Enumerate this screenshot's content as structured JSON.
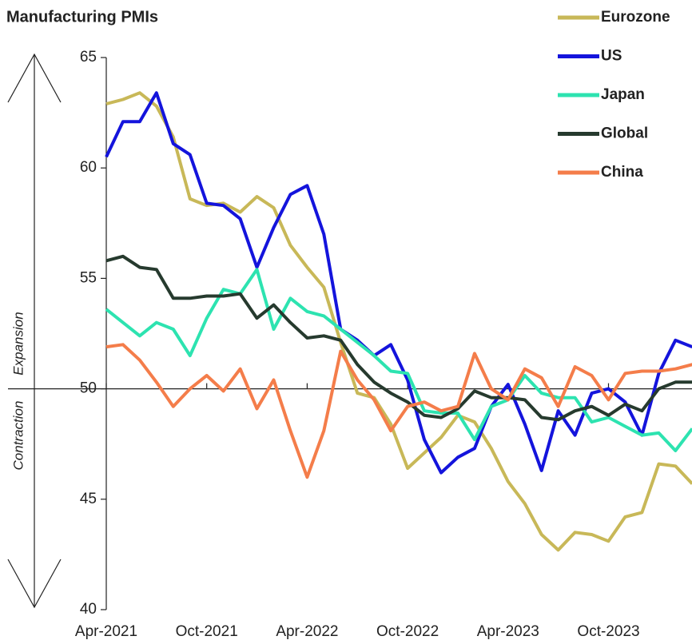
{
  "chart_data": {
    "type": "line",
    "title": "Manufacturing PMIs",
    "annotations": [
      "Expansion",
      "Contraction"
    ],
    "categories": [
      "Apr-2021",
      null,
      null,
      null,
      null,
      null,
      "Oct-2021",
      null,
      null,
      null,
      null,
      null,
      "Apr-2022",
      null,
      null,
      null,
      null,
      null,
      "Oct-2022",
      null,
      null,
      null,
      null,
      null,
      "Apr-2023",
      null,
      null,
      null,
      null,
      null,
      "Oct-2023",
      null,
      null,
      null,
      null,
      null
    ],
    "series": [
      {
        "name": "Eurozone",
        "color": "#c8b858",
        "values": [
          62.9,
          63.1,
          63.4,
          62.8,
          61.4,
          58.6,
          58.3,
          58.4,
          58.0,
          58.7,
          58.2,
          56.5,
          55.5,
          54.6,
          52.1,
          49.8,
          49.6,
          48.4,
          46.4,
          47.1,
          47.8,
          48.8,
          48.5,
          47.3,
          45.8,
          44.8,
          43.4,
          42.7,
          43.5,
          43.4,
          43.1,
          44.2,
          44.4,
          46.6,
          46.5,
          45.7
        ]
      },
      {
        "name": "US",
        "color": "#1414dc",
        "values": [
          60.5,
          62.1,
          62.1,
          63.4,
          61.1,
          60.6,
          58.4,
          58.3,
          57.7,
          55.5,
          57.3,
          58.8,
          59.2,
          57.0,
          52.7,
          52.2,
          51.5,
          52.0,
          50.4,
          47.7,
          46.2,
          46.9,
          47.3,
          49.2,
          50.2,
          48.4,
          46.3,
          49.0,
          47.9,
          49.8,
          50.0,
          49.4,
          47.9,
          50.7,
          52.2,
          51.9
        ]
      },
      {
        "name": "Japan",
        "color": "#2de3b0",
        "values": [
          53.6,
          53.0,
          52.4,
          53.0,
          52.7,
          51.5,
          53.2,
          54.5,
          54.3,
          55.4,
          52.7,
          54.1,
          53.5,
          53.3,
          52.7,
          52.1,
          51.5,
          50.8,
          50.7,
          49.0,
          48.9,
          48.9,
          47.7,
          49.2,
          49.5,
          50.6,
          49.8,
          49.6,
          49.6,
          48.5,
          48.7,
          48.3,
          47.9,
          48.0,
          47.2,
          48.2
        ]
      },
      {
        "name": "Global",
        "color": "#263a2e",
        "values": [
          55.8,
          56.0,
          55.5,
          55.4,
          54.1,
          54.1,
          54.2,
          54.2,
          54.3,
          53.2,
          53.8,
          53.0,
          52.3,
          52.4,
          52.2,
          51.1,
          50.3,
          49.8,
          49.4,
          48.8,
          48.7,
          49.1,
          49.9,
          49.6,
          49.6,
          49.5,
          48.7,
          48.6,
          49.0,
          49.2,
          48.8,
          49.3,
          49.0,
          50.0,
          50.3,
          50.3
        ]
      },
      {
        "name": "China",
        "color": "#f47d4a",
        "values": [
          51.9,
          52.0,
          51.3,
          50.3,
          49.2,
          50.0,
          50.6,
          49.9,
          50.9,
          49.1,
          50.4,
          48.1,
          46.0,
          48.1,
          51.7,
          50.4,
          49.5,
          48.1,
          49.2,
          49.4,
          49.0,
          49.2,
          51.6,
          50.0,
          49.5,
          50.9,
          50.5,
          49.2,
          51.0,
          50.6,
          49.5,
          50.7,
          50.8,
          50.8,
          50.9,
          51.1
        ]
      }
    ],
    "ylim": [
      40,
      65
    ],
    "yticks": [
      40,
      45,
      50,
      55,
      60,
      65
    ],
    "hline": 50,
    "legend": "top-right"
  }
}
